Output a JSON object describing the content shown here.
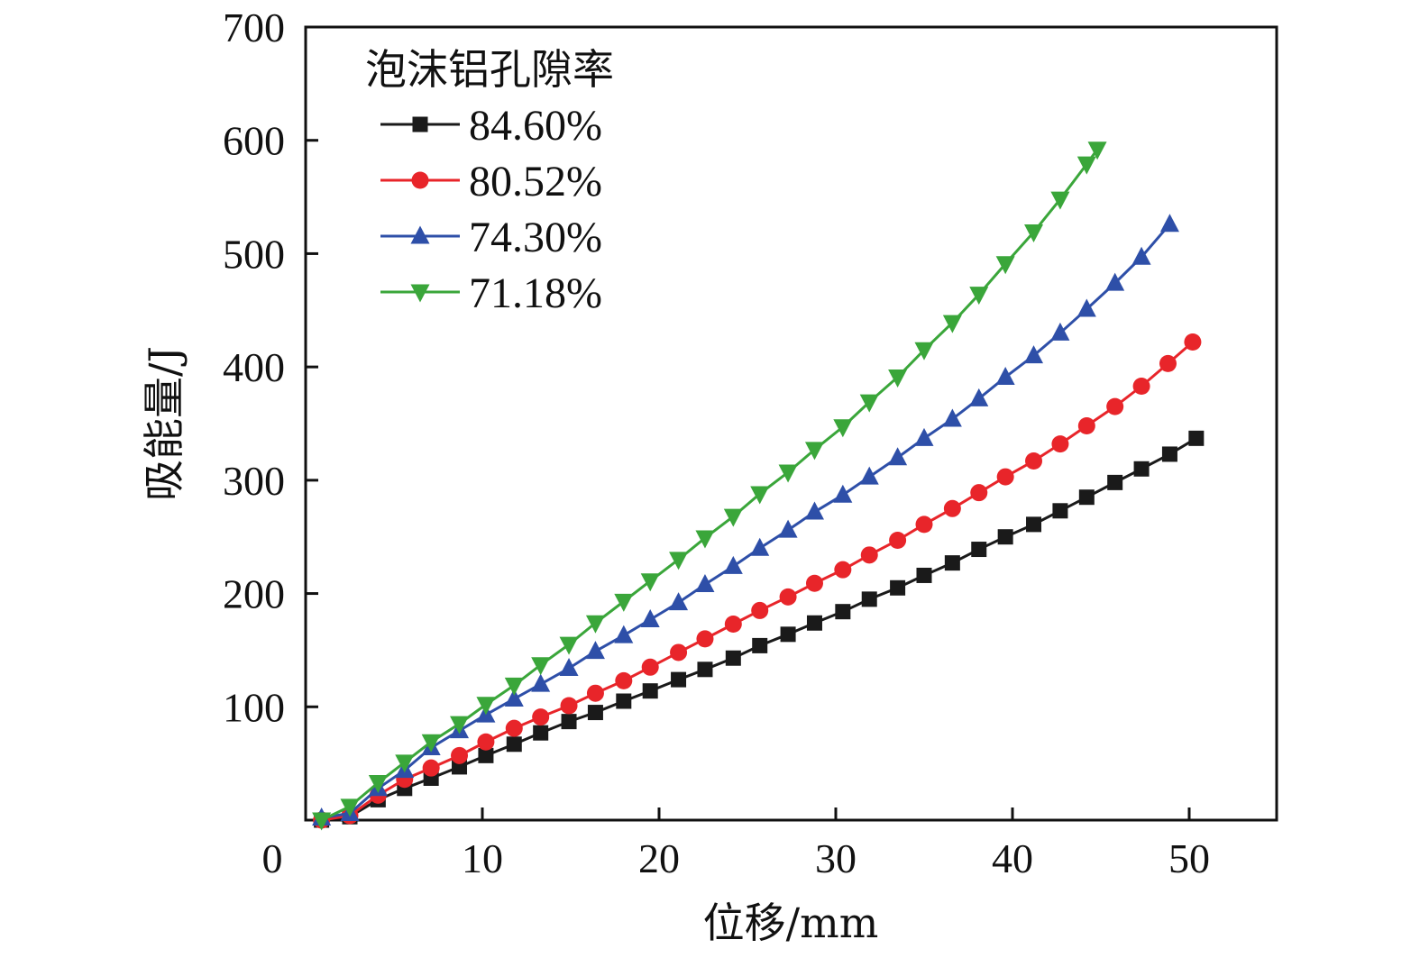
{
  "chart_data": {
    "type": "line",
    "title": "",
    "xlabel": "位移/mm",
    "ylabel": "吸能量/J",
    "xlim": [
      0,
      55
    ],
    "ylim": [
      0,
      700
    ],
    "xticks": [
      0,
      10,
      20,
      30,
      40,
      50
    ],
    "yticks": [
      100,
      200,
      300,
      400,
      500,
      600,
      700
    ],
    "x_tick_labels": [
      "0",
      "10",
      "20",
      "30",
      "40",
      "50"
    ],
    "y_tick_labels": [
      "100",
      "200",
      "300",
      "400",
      "500",
      "600",
      "700"
    ],
    "grid": false,
    "legend": {
      "title": "泡沫铝孔隙率",
      "placement": "top-left"
    },
    "series": [
      {
        "name": "84.60%",
        "color": "#1a1a1a",
        "marker": "square",
        "x": [
          0.9,
          2.5,
          4.1,
          5.6,
          7.1,
          8.7,
          10.2,
          11.8,
          13.3,
          14.9,
          16.4,
          18.0,
          19.5,
          21.1,
          22.6,
          24.2,
          25.7,
          27.3,
          28.8,
          30.4,
          31.9,
          33.5,
          35.0,
          36.6,
          38.1,
          39.6,
          41.2,
          42.7,
          44.2,
          45.8,
          47.3,
          48.9,
          50.4
        ],
        "y": [
          0,
          3,
          18,
          28,
          37,
          47,
          57,
          67,
          77,
          87,
          95,
          105,
          114,
          124,
          133,
          143,
          154,
          164,
          174,
          184,
          195,
          205,
          216,
          227,
          239,
          250,
          261,
          273,
          285,
          298,
          310,
          323,
          337
        ]
      },
      {
        "name": "80.52%",
        "color": "#e8252a",
        "marker": "circle",
        "x": [
          0.9,
          2.5,
          4.1,
          5.6,
          7.1,
          8.7,
          10.2,
          11.8,
          13.3,
          14.9,
          16.4,
          18.0,
          19.5,
          21.1,
          22.6,
          24.2,
          25.7,
          27.3,
          28.8,
          30.4,
          31.9,
          33.5,
          35.0,
          36.6,
          38.1,
          39.6,
          41.2,
          42.7,
          44.2,
          45.8,
          47.3,
          48.8,
          50.2
        ],
        "y": [
          0,
          4,
          22,
          36,
          46,
          57,
          69,
          81,
          91,
          101,
          112,
          123,
          135,
          148,
          160,
          173,
          185,
          197,
          209,
          221,
          234,
          247,
          261,
          275,
          289,
          303,
          317,
          332,
          348,
          365,
          383,
          403,
          422
        ]
      },
      {
        "name": "74.30%",
        "color": "#2e4fa8",
        "marker": "triangle-up",
        "x": [
          0.9,
          2.5,
          4.1,
          5.6,
          7.1,
          8.7,
          10.2,
          11.8,
          13.3,
          14.9,
          16.4,
          18.0,
          19.5,
          21.1,
          22.6,
          24.2,
          25.7,
          27.3,
          28.8,
          30.4,
          31.9,
          33.5,
          35.0,
          36.6,
          38.1,
          39.6,
          41.2,
          42.7,
          44.2,
          45.8,
          47.3,
          48.9
        ],
        "y": [
          2,
          6,
          28,
          44,
          64,
          79,
          93,
          107,
          120,
          134,
          149,
          163,
          177,
          192,
          208,
          224,
          240,
          256,
          272,
          287,
          303,
          320,
          337,
          354,
          372,
          391,
          410,
          430,
          451,
          474,
          497,
          526
        ]
      },
      {
        "name": "71.18%",
        "color": "#3aa63a",
        "marker": "triangle-down",
        "x": [
          0.9,
          2.5,
          4.1,
          5.6,
          7.1,
          8.7,
          10.2,
          11.8,
          13.3,
          14.9,
          16.4,
          18.0,
          19.5,
          21.1,
          22.6,
          24.2,
          25.7,
          27.3,
          28.8,
          30.4,
          31.9,
          33.5,
          35.0,
          36.6,
          38.1,
          39.6,
          41.2,
          42.7,
          44.2,
          44.8
        ],
        "y": [
          0,
          12,
          33,
          51,
          69,
          85,
          102,
          119,
          137,
          155,
          174,
          193,
          211,
          230,
          249,
          268,
          288,
          307,
          327,
          347,
          369,
          391,
          415,
          439,
          464,
          491,
          519,
          548,
          579,
          592
        ]
      }
    ]
  }
}
